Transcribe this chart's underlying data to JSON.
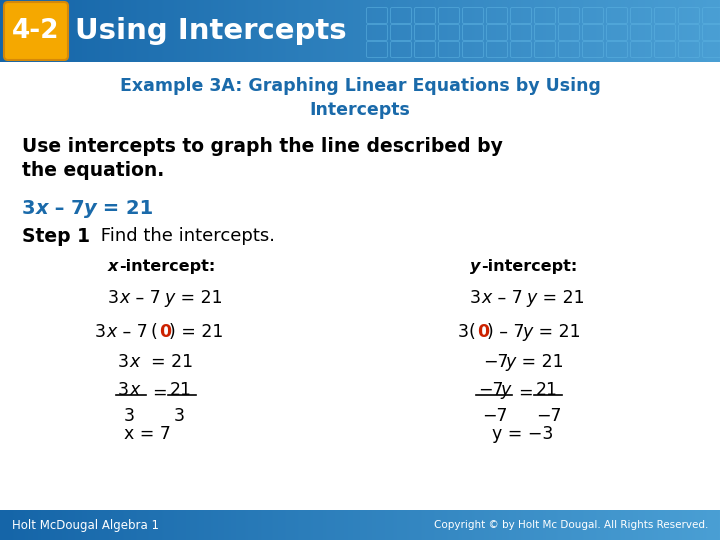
{
  "bg_color": "#ffffff",
  "header_bg_left": "#1565a8",
  "header_bg_right": "#4a9fd4",
  "header_badge_bg": "#f5a800",
  "header_badge_text": "4-2",
  "header_title": "Using Intercepts",
  "footer_bg": "#1a82c8",
  "footer_left": "Holt McDougal Algebra 1",
  "footer_right": "Copyright © by Holt Mc Dougal. All Rights Reserved.",
  "example_title_line1": "Example 3A: Graphing Linear Equations by Using",
  "example_title_line2": "Intercepts",
  "example_title_color": "#1a6aaa",
  "body_text_color": "#000000",
  "blue_color": "#1a6aaa",
  "red_color": "#cc2200"
}
